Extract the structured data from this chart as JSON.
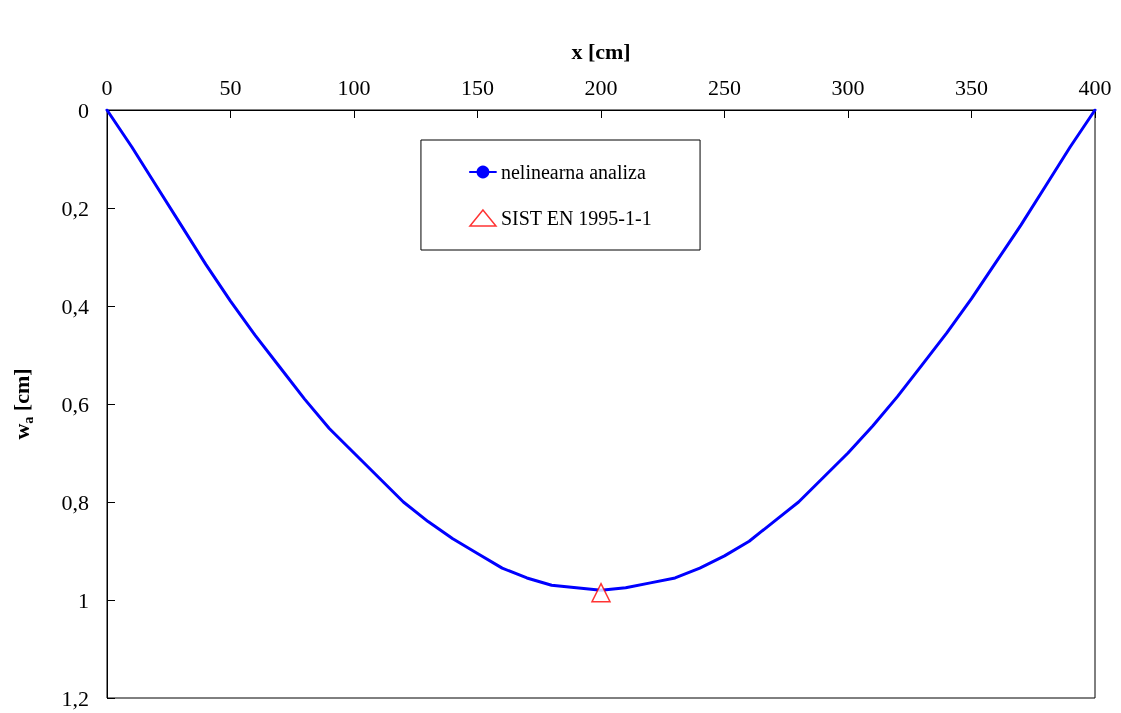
{
  "chart_data": {
    "type": "line",
    "xlabel": "x [cm]",
    "ylabel": "w$_{a}$ [cm]",
    "xlim": [
      0,
      400
    ],
    "xticks": [
      0,
      50,
      100,
      150,
      200,
      250,
      300,
      350,
      400
    ],
    "ylim": [
      1.2,
      0
    ],
    "yticks": [
      0,
      {
        "value": 0.2,
        "label": "0,2"
      },
      {
        "value": 0.4,
        "label": "0,4"
      },
      {
        "value": 0.6,
        "label": "0,6"
      },
      {
        "value": 0.8,
        "label": "0,8"
      },
      1,
      {
        "value": 1.2,
        "label": "1,2"
      }
    ],
    "grid": false,
    "legend": "top",
    "line_style": "solid",
    "series": [
      {
        "name": "nelinearna analiza",
        "type": "line",
        "color": "#0000ff",
        "marker": "none",
        "x": [
          0,
          10,
          20,
          30,
          40,
          50,
          60,
          70,
          80,
          90,
          100,
          110,
          120,
          130,
          140,
          150,
          160,
          170,
          180,
          190,
          200,
          210,
          220,
          230,
          240,
          250,
          260,
          270,
          280,
          290,
          300,
          310,
          320,
          330,
          340,
          350,
          360,
          370,
          380,
          390,
          400
        ],
        "values": [
          0,
          0.075,
          0.155,
          0.235,
          0.315,
          0.39,
          0.46,
          0.525,
          0.59,
          0.65,
          0.7,
          0.75,
          0.8,
          0.84,
          0.875,
          0.905,
          0.935,
          0.955,
          0.97,
          0.975,
          0.98,
          0.975,
          0.965,
          0.955,
          0.935,
          0.91,
          0.88,
          0.84,
          0.8,
          0.75,
          0.7,
          0.645,
          0.585,
          0.52,
          0.455,
          0.385,
          0.31,
          0.235,
          0.155,
          0.075,
          0
        ]
      },
      {
        "name": "SIST EN 1995-1-1",
        "type": "scatter",
        "color": "#ff0000",
        "marker": "triangle",
        "x": [
          200
        ],
        "values": [
          0.985
        ]
      }
    ]
  }
}
